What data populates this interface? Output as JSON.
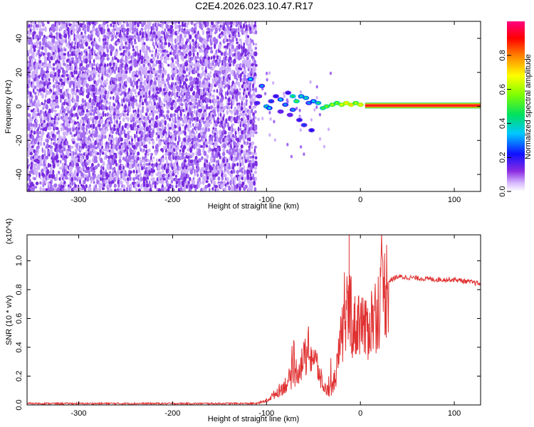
{
  "title": "C2E4.2026.023.10.47.R17",
  "chart_data": [
    {
      "type": "heatmap",
      "name": "spectrogram",
      "xlabel": "Height of straight line (km)",
      "ylabel": "Frequency (Hz)",
      "xlim": [
        -355,
        128
      ],
      "ylim": [
        -50,
        50
      ],
      "xticks": [
        -300,
        -200,
        -100,
        0,
        100
      ],
      "yticks": [
        -40,
        -20,
        0,
        20,
        40
      ],
      "colorbar": {
        "label": "Normalized spectral amplitude",
        "range": [
          0,
          1
        ],
        "ticks": [
          0.0,
          0.2,
          0.4,
          0.6,
          0.8
        ],
        "tick_labels": [
          "0.0",
          "0.2",
          "0.4",
          "0.6",
          "0.8"
        ]
      },
      "features": {
        "noise_region_x": [
          -355,
          -112
        ],
        "noise_amplitude": 0.1,
        "signal_line_freq": 0.5,
        "signal_line_x": [
          5,
          128
        ],
        "signal_line_amplitude": 0.9
      }
    },
    {
      "type": "line",
      "name": "snr",
      "xlabel": "Height of straight line (km)",
      "ylabel": "SNR (10 * v/v)",
      "y_scale_label": "(x10^4)",
      "xlim": [
        -355,
        128
      ],
      "ylim": [
        0,
        1.18
      ],
      "xticks": [
        -300,
        -200,
        -100,
        0,
        100
      ],
      "yticks": [
        0.0,
        0.2,
        0.4,
        0.6,
        0.8,
        1.0
      ],
      "ytick_labels": [
        "0.0",
        "0.2",
        "0.4",
        "0.6",
        "0.8",
        "1.0"
      ],
      "series": [
        {
          "name": "SNR",
          "color": "#e03030",
          "x": [
            -355,
            -110,
            -100,
            -90,
            -80,
            -70,
            -60,
            -55,
            -50,
            -45,
            -40,
            -35,
            -30,
            -25,
            -20,
            -15,
            -12,
            -10,
            -8,
            -5,
            0,
            5,
            10,
            15,
            20,
            25,
            30,
            40,
            60,
            80,
            100,
            110,
            128
          ],
          "y": [
            0.01,
            0.01,
            0.03,
            0.08,
            0.14,
            0.22,
            0.31,
            0.38,
            0.33,
            0.25,
            0.13,
            0.1,
            0.11,
            0.25,
            0.48,
            0.57,
            0.66,
            0.7,
            0.5,
            0.55,
            0.62,
            0.5,
            0.57,
            0.62,
            0.7,
            0.78,
            0.86,
            0.89,
            0.88,
            0.87,
            0.87,
            0.86,
            0.84
          ]
        }
      ]
    }
  ],
  "colors": {
    "noise": "#7a2be0",
    "line": "#e03030"
  }
}
